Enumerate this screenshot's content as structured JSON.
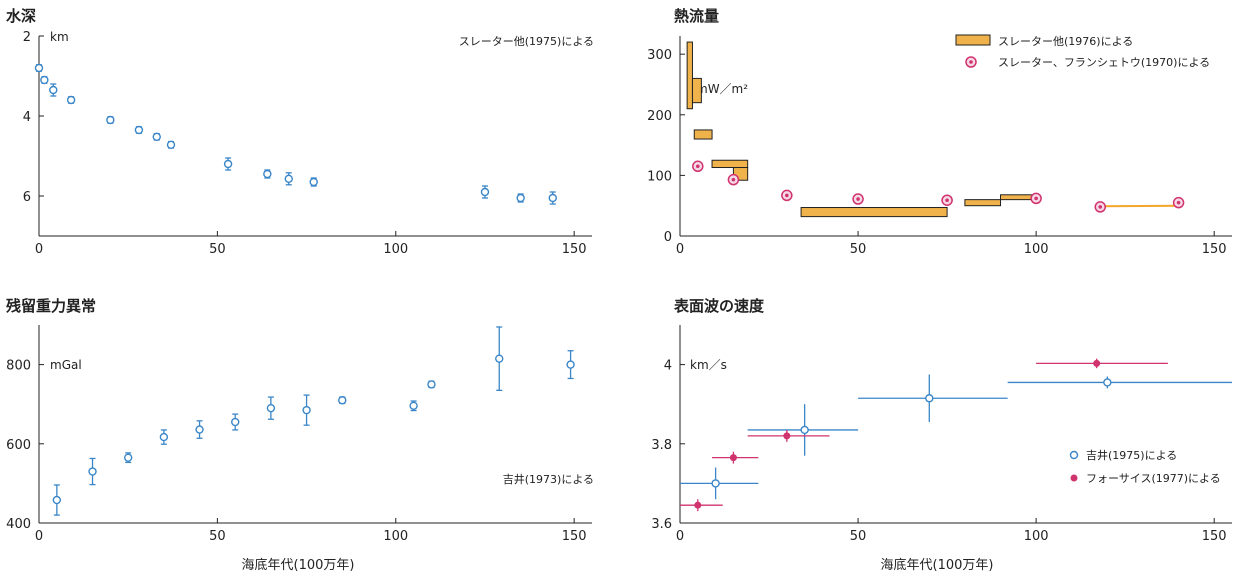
{
  "xlabel": "海底年代(100万年)",
  "colors": {
    "blue": "#3a86c8",
    "magenta": "#d0336e",
    "orange": "#f0b24a",
    "orange_line": "#f4a62a",
    "axis": "#222222"
  },
  "chart_data": [
    {
      "id": "depth",
      "type": "scatter",
      "title": "水深",
      "unit": "km",
      "note": "スレーター他(1975)による",
      "xlim": [
        0,
        155
      ],
      "ylim": [
        2,
        7
      ],
      "y_inverted": true,
      "xticks": [
        0,
        50,
        100,
        150
      ],
      "yticks": [
        2,
        4,
        6
      ],
      "series": [
        {
          "marker": "hollow-circle",
          "points": [
            {
              "x": 0,
              "y": 2.8,
              "err": 0.08
            },
            {
              "x": 1.5,
              "y": 3.1,
              "err": 0.08
            },
            {
              "x": 4,
              "y": 3.35,
              "err": 0.15
            },
            {
              "x": 9,
              "y": 3.6,
              "err": 0.08
            },
            {
              "x": 20,
              "y": 4.1,
              "err": 0.08
            },
            {
              "x": 28,
              "y": 4.35,
              "err": 0.08
            },
            {
              "x": 33,
              "y": 4.52,
              "err": 0.08
            },
            {
              "x": 37,
              "y": 4.72,
              "err": 0.08
            },
            {
              "x": 53,
              "y": 5.2,
              "err": 0.15
            },
            {
              "x": 64,
              "y": 5.45,
              "err": 0.1
            },
            {
              "x": 70,
              "y": 5.57,
              "err": 0.15
            },
            {
              "x": 77,
              "y": 5.65,
              "err": 0.1
            },
            {
              "x": 125,
              "y": 5.9,
              "err": 0.15
            },
            {
              "x": 135,
              "y": 6.05,
              "err": 0.1
            },
            {
              "x": 144,
              "y": 6.05,
              "err": 0.15
            }
          ]
        }
      ]
    },
    {
      "id": "heatflow",
      "type": "scatter",
      "title": "熱流量",
      "unit": "mW／m²",
      "xlim": [
        0,
        155
      ],
      "ylim": [
        0,
        330
      ],
      "xticks": [
        0,
        50,
        100,
        150
      ],
      "yticks": [
        0,
        100,
        200,
        300
      ],
      "legend": [
        {
          "marker": "bar",
          "label": "スレーター他(1976)による"
        },
        {
          "marker": "ring",
          "label": "スレーター、フランシェトウ(1970)による"
        }
      ],
      "boxes": [
        {
          "x0": 2,
          "x1": 3.5,
          "y0": 210,
          "y1": 320
        },
        {
          "x0": 3.5,
          "x1": 6,
          "y0": 220,
          "y1": 260
        },
        {
          "x0": 4,
          "x1": 9,
          "y0": 160,
          "y1": 175
        },
        {
          "x0": 9,
          "x1": 19,
          "y0": 113,
          "y1": 125
        },
        {
          "x0": 15,
          "x1": 19,
          "y0": 92,
          "y1": 113
        },
        {
          "x0": 34,
          "x1": 75,
          "y0": 32,
          "y1": 47
        },
        {
          "x0": 80,
          "x1": 90,
          "y0": 50,
          "y1": 60
        },
        {
          "x0": 90,
          "x1": 100,
          "y0": 60,
          "y1": 68
        }
      ],
      "rings": [
        {
          "x": 5,
          "y": 115
        },
        {
          "x": 15,
          "y": 93
        },
        {
          "x": 30,
          "y": 67
        },
        {
          "x": 50,
          "y": 61
        },
        {
          "x": 75,
          "y": 59
        },
        {
          "x": 100,
          "y": 62
        },
        {
          "x": 118,
          "y": 48
        },
        {
          "x": 140,
          "y": 55
        }
      ],
      "line": {
        "x0": 118,
        "y0": 49,
        "x1": 140,
        "y1": 50
      }
    },
    {
      "id": "gravity",
      "type": "scatter",
      "title": "残留重力異常",
      "unit": "mGal",
      "note": "吉井(1973)による",
      "xlim": [
        0,
        155
      ],
      "ylim": [
        400,
        900
      ],
      "xticks": [
        0,
        50,
        100,
        150
      ],
      "yticks": [
        400,
        600,
        800
      ],
      "series": [
        {
          "marker": "hollow-circle",
          "points": [
            {
              "x": 5,
              "y": 458,
              "err": 38
            },
            {
              "x": 15,
              "y": 530,
              "err": 33
            },
            {
              "x": 25,
              "y": 565,
              "err": 12
            },
            {
              "x": 35,
              "y": 617,
              "err": 18
            },
            {
              "x": 45,
              "y": 636,
              "err": 22
            },
            {
              "x": 55,
              "y": 655,
              "err": 20
            },
            {
              "x": 65,
              "y": 690,
              "err": 28
            },
            {
              "x": 75,
              "y": 685,
              "err": 38
            },
            {
              "x": 85,
              "y": 710,
              "err": 8
            },
            {
              "x": 105,
              "y": 696,
              "err": 12
            },
            {
              "x": 110,
              "y": 750,
              "err": 8
            },
            {
              "x": 129,
              "y": 815,
              "err": 80
            },
            {
              "x": 149,
              "y": 800,
              "err": 35
            }
          ]
        }
      ]
    },
    {
      "id": "velocity",
      "type": "scatter",
      "title": "表面波の速度",
      "unit": "km／s",
      "xlim": [
        0,
        155
      ],
      "ylim": [
        3.6,
        4.1
      ],
      "xticks": [
        0,
        50,
        100,
        150
      ],
      "yticks": [
        3.6,
        3.8,
        4.0
      ],
      "legend": [
        {
          "marker": "hollow-circle",
          "label": "吉井(1975)による"
        },
        {
          "marker": "filled-circle",
          "label": "フォーサイス(1977)による"
        }
      ],
      "series": [
        {
          "marker": "hollow-circle",
          "points": [
            {
              "x": 10,
              "y": 3.7,
              "xerr": [
                0,
                22
              ],
              "yerr": 0.04
            },
            {
              "x": 35,
              "y": 3.835,
              "xerr": [
                19,
                50
              ],
              "yerr": 0.065
            },
            {
              "x": 70,
              "y": 3.915,
              "xerr": [
                50,
                92
              ],
              "yerr": 0.06
            },
            {
              "x": 120,
              "y": 3.955,
              "xerr": [
                92,
                155
              ],
              "yerr": 0.015
            }
          ]
        },
        {
          "marker": "filled-circle",
          "points": [
            {
              "x": 5,
              "y": 3.645,
              "xerr": [
                0,
                12
              ],
              "yerr": 0.015
            },
            {
              "x": 15,
              "y": 3.765,
              "xerr": [
                9,
                22
              ],
              "yerr": 0.015
            },
            {
              "x": 30,
              "y": 3.82,
              "xerr": [
                19,
                42
              ],
              "yerr": 0.015
            },
            {
              "x": 117,
              "y": 4.003,
              "xerr": [
                100,
                137
              ],
              "yerr": 0.012
            }
          ]
        }
      ]
    }
  ]
}
